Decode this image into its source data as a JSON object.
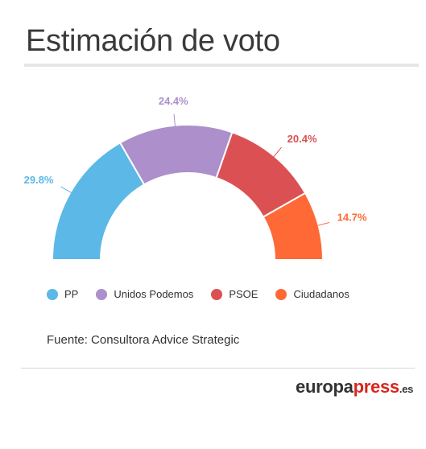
{
  "header": {
    "title": "Estimación de voto"
  },
  "chart_data": {
    "type": "pie",
    "variant": "semicircle-donut",
    "series": [
      {
        "name": "PP",
        "value": 29.8,
        "label": "29.8%",
        "color": "#5cb8e6"
      },
      {
        "name": "Unidos Podemos",
        "value": 24.4,
        "label": "24.4%",
        "color": "#ac8fcb"
      },
      {
        "name": "PSOE",
        "value": 20.4,
        "label": "20.4%",
        "color": "#db5153"
      },
      {
        "name": "Ciudadanos",
        "value": 14.7,
        "label": "14.7%",
        "color": "#ff6935"
      }
    ],
    "legend_position": "bottom-left"
  },
  "source": "Fuente: Consultora Advice Strategic",
  "brand": {
    "main": "europa",
    "accent": "press",
    "tld": ".es"
  }
}
